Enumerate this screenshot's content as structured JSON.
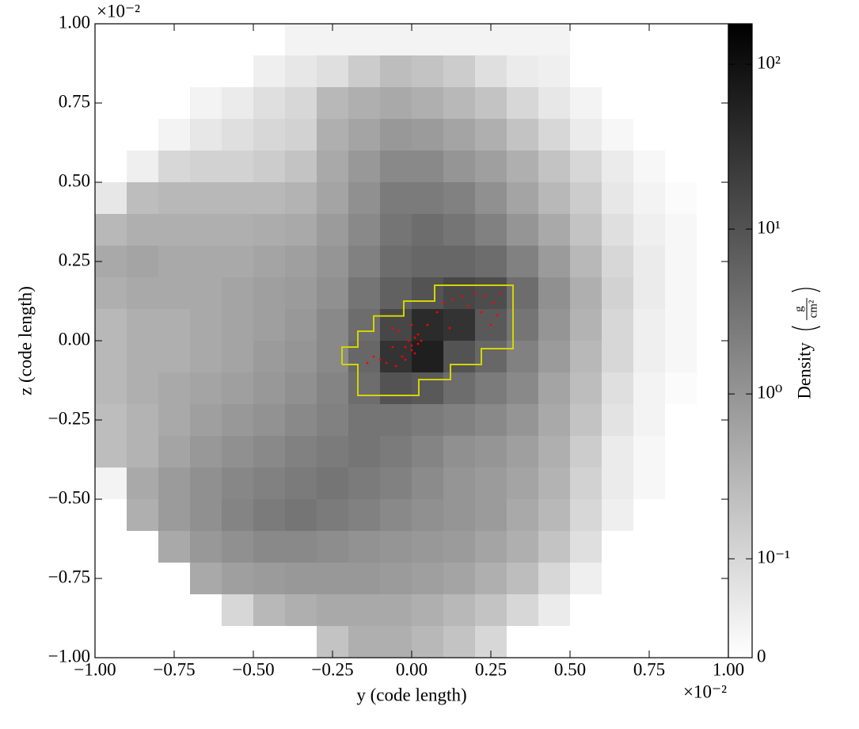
{
  "chart_data": {
    "type": "heatmap",
    "xlabel": "y  (code length)",
    "ylabel": "z  (code length)",
    "x_offset_label": "×10⁻²",
    "y_offset_label": "×10⁻²",
    "xlim": [
      -1,
      1
    ],
    "ylim": [
      -1,
      1
    ],
    "xticks": [
      {
        "value": -1,
        "label": "−1.00"
      },
      {
        "value": -0.75,
        "label": "−0.75"
      },
      {
        "value": -0.5,
        "label": "−0.50"
      },
      {
        "value": -0.25,
        "label": "−0.25"
      },
      {
        "value": 0,
        "label": "0.00"
      },
      {
        "value": 0.25,
        "label": "0.25"
      },
      {
        "value": 0.5,
        "label": "0.50"
      },
      {
        "value": 0.75,
        "label": "0.75"
      },
      {
        "value": 1,
        "label": "1.00"
      }
    ],
    "yticks": [
      {
        "value": -1,
        "label": "−1.00"
      },
      {
        "value": -0.75,
        "label": "−0.75"
      },
      {
        "value": -0.5,
        "label": "−0.50"
      },
      {
        "value": -0.25,
        "label": "−0.25"
      },
      {
        "value": 0,
        "label": "0.00"
      },
      {
        "value": 0.25,
        "label": "0.25"
      },
      {
        "value": 0.5,
        "label": "0.50"
      },
      {
        "value": 0.75,
        "label": "0.75"
      },
      {
        "value": 1,
        "label": "1.00"
      }
    ],
    "colorbar_label": "Density",
    "units_numerator": "g",
    "units_denominator": "cm²",
    "color_scale": "symlog",
    "linthresh": 0.1,
    "linscale": 0.6,
    "clim": [
      0,
      176
    ],
    "cticks": [
      0,
      {
        "value": 0.1,
        "label": "10⁻¹"
      },
      {
        "value": 1,
        "label": "10⁰"
      },
      {
        "value": 10,
        "label": "10¹"
      },
      {
        "value": 100,
        "label": "10²"
      }
    ],
    "z": [
      [
        0,
        0,
        0,
        0,
        0,
        0,
        0.03,
        0.03,
        0.03,
        0.03,
        0.03,
        0.03,
        0.03,
        0.03,
        0.03,
        0,
        0,
        0,
        0,
        0
      ],
      [
        0,
        0,
        0,
        0,
        0,
        0.04,
        0.06,
        0.08,
        0.15,
        0.25,
        0.2,
        0.15,
        0.08,
        0.05,
        0.04,
        0,
        0,
        0,
        0,
        0
      ],
      [
        0,
        0,
        0,
        0.03,
        0.05,
        0.08,
        0.1,
        0.3,
        0.4,
        0.5,
        0.4,
        0.3,
        0.2,
        0.1,
        0.06,
        0.03,
        0,
        0,
        0,
        0
      ],
      [
        0,
        0,
        0.03,
        0.06,
        0.08,
        0.1,
        0.12,
        0.4,
        0.6,
        0.9,
        0.8,
        0.6,
        0.4,
        0.2,
        0.1,
        0.05,
        0.02,
        0,
        0,
        0
      ],
      [
        0,
        0.04,
        0.1,
        0.12,
        0.12,
        0.15,
        0.2,
        0.5,
        0.9,
        1.5,
        1.5,
        1,
        0.7,
        0.4,
        0.2,
        0.1,
        0.05,
        0.02,
        0,
        0
      ],
      [
        0.06,
        0.25,
        0.3,
        0.3,
        0.3,
        0.3,
        0.35,
        0.6,
        1.2,
        2.5,
        2.5,
        2,
        1.2,
        0.6,
        0.3,
        0.15,
        0.06,
        0.03,
        0.01,
        0
      ],
      [
        0.3,
        0.4,
        0.4,
        0.4,
        0.4,
        0.45,
        0.5,
        0.8,
        1.5,
        3,
        4,
        3,
        2,
        1,
        0.5,
        0.2,
        0.08,
        0.04,
        0.02,
        0
      ],
      [
        0.5,
        0.6,
        0.5,
        0.5,
        0.5,
        0.6,
        0.7,
        1,
        2,
        4,
        5,
        5,
        4,
        2,
        0.8,
        0.3,
        0.1,
        0.05,
        0.02,
        0
      ],
      [
        0.4,
        0.5,
        0.5,
        0.5,
        0.6,
        0.7,
        0.8,
        1.2,
        3,
        6,
        10,
        15,
        12,
        4,
        1.2,
        0.4,
        0.12,
        0.05,
        0.02,
        0
      ],
      [
        0.3,
        0.4,
        0.4,
        0.5,
        0.6,
        0.7,
        0.9,
        1.5,
        4,
        15,
        40,
        30,
        8,
        3,
        1,
        0.35,
        0.1,
        0.04,
        0.02,
        0
      ],
      [
        0.3,
        0.4,
        0.4,
        0.5,
        0.6,
        0.8,
        1,
        1.5,
        5,
        30,
        60,
        10,
        5,
        2,
        0.8,
        0.3,
        0.1,
        0.04,
        0.02,
        0
      ],
      [
        0.3,
        0.4,
        0.5,
        0.6,
        0.7,
        0.9,
        1.2,
        1.8,
        4,
        10,
        8,
        4,
        2.5,
        1.5,
        0.6,
        0.25,
        0.08,
        0.03,
        0.01,
        0
      ],
      [
        0.25,
        0.35,
        0.5,
        0.7,
        0.9,
        1.1,
        1.5,
        2,
        3,
        3,
        2.5,
        2,
        1.5,
        1,
        0.5,
        0.2,
        0.07,
        0.03,
        0,
        0
      ],
      [
        0.25,
        0.35,
        0.6,
        0.9,
        1.2,
        1.5,
        2,
        2.5,
        3,
        2.5,
        1.8,
        1.2,
        1,
        0.7,
        0.4,
        0.15,
        0.05,
        0.02,
        0,
        0
      ],
      [
        0.03,
        0.5,
        0.8,
        1.2,
        1.6,
        2,
        2.5,
        3,
        2.5,
        2,
        1.4,
        1,
        0.8,
        0.6,
        0.35,
        0.12,
        0.05,
        0.02,
        0,
        0
      ],
      [
        0,
        0.4,
        0.8,
        1.2,
        1.8,
        2.5,
        3,
        2.5,
        2,
        1.5,
        1.2,
        1,
        0.8,
        0.5,
        0.3,
        0.1,
        0.04,
        0,
        0,
        0
      ],
      [
        0,
        0,
        0.5,
        0.9,
        1.2,
        1.5,
        1.5,
        1.3,
        1.1,
        1,
        0.9,
        0.8,
        0.6,
        0.4,
        0.2,
        0.08,
        0,
        0,
        0,
        0
      ],
      [
        0,
        0,
        0,
        0.5,
        0.7,
        0.8,
        0.9,
        0.9,
        0.9,
        0.8,
        0.7,
        0.6,
        0.4,
        0.25,
        0.1,
        0.04,
        0,
        0,
        0,
        0
      ],
      [
        0,
        0,
        0,
        0,
        0.1,
        0.3,
        0.4,
        0.5,
        0.5,
        0.5,
        0.4,
        0.3,
        0.2,
        0.1,
        0.05,
        0,
        0,
        0,
        0,
        0
      ],
      [
        0,
        0,
        0,
        0,
        0,
        0,
        0,
        0.2,
        0.4,
        0.4,
        0.3,
        0.2,
        0.1,
        0,
        0,
        0,
        0,
        0,
        0,
        0
      ]
    ],
    "contour": {
      "color": "#d4d400",
      "x": [
        -0.22,
        -0.22,
        -0.17,
        -0.17,
        -0.12,
        -0.12,
        -0.025,
        -0.025,
        0.0725,
        0.0725,
        0.32,
        0.32,
        0.22,
        0.22,
        0.1225,
        0.1225,
        0.0225,
        0.0225,
        -0.17,
        -0.17,
        -0.22
      ],
      "y": [
        -0.075,
        -0.02,
        -0.02,
        0.03,
        0.03,
        0.078,
        0.078,
        0.125,
        0.125,
        0.175,
        0.175,
        -0.025,
        -0.025,
        -0.075,
        -0.075,
        -0.1225,
        -0.1225,
        -0.1725,
        -0.1725,
        -0.075,
        -0.075
      ]
    },
    "particles": {
      "color": "#ff0000",
      "x": [
        -0.08,
        -0.05,
        -0.02,
        0.01,
        0.02,
        0.01,
        -0.01,
        -0.02,
        0,
        0.02,
        0.03,
        -0.1,
        -0.12,
        -0.14,
        -0.06,
        -0.04,
        0,
        -0.06,
        0.05,
        0.08,
        0.1,
        0.13,
        0.16,
        0.2,
        0.23,
        0.26,
        0.27,
        0.25,
        0.22,
        0.18,
        0.28,
        0.12,
        -0.03,
        0
      ],
      "y": [
        -0.07,
        -0.08,
        -0.06,
        -0.04,
        -0.01,
        0.01,
        0,
        -0.02,
        -0.03,
        0.02,
        0,
        -0.06,
        -0.05,
        -0.07,
        -0.02,
        0.03,
        0.05,
        0.04,
        0.05,
        0.09,
        0.12,
        0.13,
        0.14,
        0.15,
        0.14,
        0.12,
        0.08,
        0.05,
        0.09,
        0.11,
        0.15,
        0.04,
        -0.05,
        -0.015
      ]
    }
  }
}
